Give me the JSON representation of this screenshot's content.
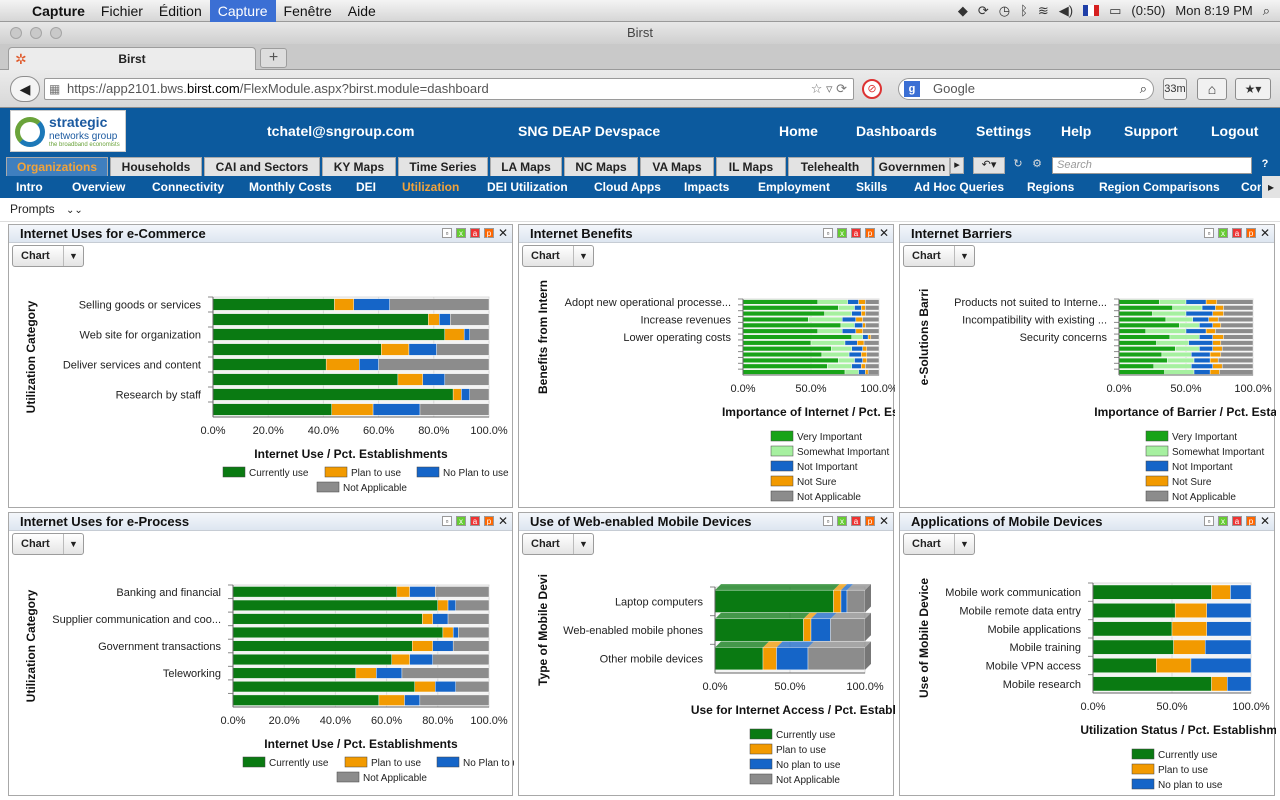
{
  "mac_menu": {
    "apple": "",
    "app": "Capture",
    "items": [
      "Fichier",
      "Édition",
      "Capture",
      "Fenêtre",
      "Aide"
    ],
    "battery": "(0:50)",
    "clock": "Mon 8:19 PM"
  },
  "window_title": "Birst",
  "browser": {
    "tab_title": "Birst",
    "new_tab": "+",
    "url_prefix": "https://app2101.bws.",
    "url_host": "birst.com",
    "url_path": "/FlexModule.aspx?birst.module=dashboard",
    "search_placeholder": "Google",
    "badge": "33m"
  },
  "app": {
    "logo_line1": "strategic",
    "logo_line2": "networks group",
    "logo_line3": "the broadband economists",
    "user": "tchatel@sngroup.com",
    "space": "SNG DEAP Devspace",
    "nav": [
      "Home",
      "Dashboards",
      "Settings",
      "Help",
      "Support",
      "Logout"
    ]
  },
  "main_tabs": [
    "Organizations",
    "Households",
    "CAI and Sectors",
    "KY Maps",
    "Time Series",
    "LA Maps",
    "NC Maps",
    "VA Maps",
    "IL Maps",
    "Telehealth",
    "Governmen"
  ],
  "search_placeholder": "Search",
  "sub_tabs": [
    "Intro",
    "Overview",
    "Connectivity",
    "Monthly Costs",
    "DEI",
    "Utilization",
    "DEI Utilization",
    "Cloud Apps",
    "Impacts",
    "Employment",
    "Skills",
    "Ad Hoc Queries",
    "Regions",
    "Region Comparisons",
    "Con"
  ],
  "prompts_label": "Prompts",
  "chart_button": "Chart",
  "colors": {
    "header": "#0c5a9e",
    "accent": "#f2a33a",
    "current": "#0a7a12",
    "very_important": "#18a318",
    "somewhat": "#a6f0a0",
    "plan": "#f29a00",
    "noplan": "#1565c8",
    "notsure": "#f29a00",
    "na": "#8c8c8c"
  },
  "panels": [
    {
      "title": "Internet Uses for e-Commerce",
      "chart_data": {
        "type": "bar",
        "orientation": "horizontal",
        "stacked": true,
        "title": "Internet Uses for e-Commerce",
        "ylabel": "Utilization Category",
        "xlabel": "Internet Use / Pct. Establishments",
        "categories": [
          "Selling goods or services",
          "",
          "Web site for organization",
          "",
          "Deliver services and content",
          "",
          "Research by staff",
          ""
        ],
        "xticks": [
          "0.0%",
          "20.0%",
          "40.0%",
          "60.0%",
          "80.0%",
          "100.0%"
        ],
        "xlim": [
          0,
          100
        ],
        "series": [
          {
            "name": "Currently use",
            "values": [
              44,
              78,
              84,
              61,
              41,
              67,
              87,
              43
            ]
          },
          {
            "name": "Plan to use",
            "values": [
              7,
              4,
              7,
              10,
              12,
              9,
              3,
              15
            ]
          },
          {
            "name": "No Plan to use",
            "values": [
              13,
              4,
              2,
              10,
              7,
              8,
              3,
              17
            ]
          },
          {
            "name": "Not Applicable",
            "values": [
              36,
              14,
              7,
              19,
              40,
              16,
              7,
              25
            ]
          }
        ],
        "legend": "bottom"
      }
    },
    {
      "title": "Internet Benefits",
      "chart_data": {
        "type": "bar",
        "orientation": "horizontal",
        "stacked": true,
        "title": "Internet Benefits",
        "ylabel": "Benefits from Intern",
        "xlabel": "Importance of Internet / Pct. Establ",
        "categories": [
          "Adopt new operational processe...",
          "",
          "",
          "Increase revenues",
          "",
          "",
          "Lower operating costs",
          "",
          "",
          "",
          "",
          "",
          ""
        ],
        "xticks": [
          "0.0%",
          "50.0%",
          "100.0%"
        ],
        "xlim": [
          0,
          100
        ],
        "series": [
          {
            "name": "Very Important",
            "values": [
              55,
              70,
              60,
              48,
              72,
              55,
              80,
              50,
              65,
              58,
              70,
              62,
              75
            ]
          },
          {
            "name": "Somewhat Important",
            "values": [
              22,
              12,
              20,
              25,
              10,
              18,
              8,
              25,
              15,
              20,
              12,
              18,
              10
            ]
          },
          {
            "name": "Not Important",
            "values": [
              8,
              5,
              7,
              10,
              6,
              10,
              4,
              9,
              8,
              9,
              6,
              7,
              5
            ]
          },
          {
            "name": "Not Sure",
            "values": [
              5,
              3,
              3,
              5,
              2,
              5,
              2,
              5,
              3,
              4,
              3,
              3,
              2
            ]
          },
          {
            "name": "Not Applicable",
            "values": [
              10,
              10,
              10,
              12,
              10,
              12,
              6,
              11,
              9,
              9,
              9,
              10,
              8
            ]
          }
        ],
        "legend": "bottom"
      }
    },
    {
      "title": "Internet Barriers",
      "chart_data": {
        "type": "bar",
        "orientation": "horizontal",
        "stacked": true,
        "title": "Internet Barriers",
        "ylabel": "e-Solutions Barri",
        "xlabel": "Importance of Barrier / Pct. Establis",
        "categories": [
          "Products not suited to Interne...",
          "",
          "",
          "Incompatibility with existing ...",
          "",
          "",
          "Security concerns",
          "",
          "",
          "",
          "",
          "",
          ""
        ],
        "xticks": [
          "0.0%",
          "50.0%",
          "100.0%"
        ],
        "xlim": [
          0,
          100
        ],
        "series": [
          {
            "name": "Very Important",
            "values": [
              30,
              40,
              25,
              35,
              45,
              20,
              38,
              28,
              42,
              32,
              36,
              26,
              34
            ]
          },
          {
            "name": "Somewhat Important",
            "values": [
              20,
              22,
              25,
              20,
              15,
              30,
              22,
              24,
              18,
              22,
              20,
              28,
              22
            ]
          },
          {
            "name": "Not Important",
            "values": [
              15,
              10,
              20,
              12,
              10,
              15,
              10,
              18,
              10,
              14,
              12,
              16,
              12
            ]
          },
          {
            "name": "Not Sure",
            "values": [
              8,
              6,
              8,
              7,
              6,
              7,
              8,
              6,
              7,
              8,
              6,
              7,
              7
            ]
          },
          {
            "name": "Not Applicable",
            "values": [
              27,
              22,
              22,
              26,
              24,
              28,
              22,
              24,
              23,
              24,
              26,
              23,
              25
            ]
          }
        ],
        "legend": "bottom"
      }
    },
    {
      "title": "Internet Uses for e-Process",
      "chart_data": {
        "type": "bar",
        "orientation": "horizontal",
        "stacked": true,
        "title": "Internet Uses for e-Process",
        "ylabel": "Utilization Category",
        "xlabel": "Internet Use / Pct. Establishments",
        "categories": [
          "Banking and financial",
          "",
          "Supplier communication and coo...",
          "",
          "Government transactions",
          "",
          "Teleworking",
          "",
          ""
        ],
        "xticks": [
          "0.0%",
          "20.0%",
          "40.0%",
          "60.0%",
          "80.0%",
          "100.0%"
        ],
        "xlim": [
          0,
          100
        ],
        "series": [
          {
            "name": "Currently use",
            "values": [
              64,
              80,
              74,
              82,
              70,
              62,
              48,
              71,
              57
            ]
          },
          {
            "name": "Plan to use",
            "values": [
              5,
              4,
              4,
              4,
              8,
              7,
              8,
              8,
              10
            ]
          },
          {
            "name": "No Plan to use",
            "values": [
              10,
              3,
              6,
              2,
              8,
              9,
              10,
              8,
              6
            ]
          },
          {
            "name": "Not Applicable",
            "values": [
              21,
              13,
              16,
              12,
              14,
              22,
              34,
              13,
              27
            ]
          }
        ],
        "legend": "bottom"
      }
    },
    {
      "title": "Use of Web-enabled Mobile Devices",
      "chart_data": {
        "type": "bar",
        "orientation": "horizontal",
        "stacked": true,
        "title": "Use of Web-enabled Mobile Devices",
        "ylabel": "Type of Mobile Devi",
        "xlabel": "Use for Internet Access / Pct. Establisl",
        "categories": [
          "Laptop computers",
          "Web-enabled mobile phones",
          "Other mobile devices"
        ],
        "xticks": [
          "0.0%",
          "50.0%",
          "100.0%"
        ],
        "xlim": [
          0,
          100
        ],
        "series": [
          {
            "name": "Currently use",
            "values": [
              79,
              59,
              32
            ]
          },
          {
            "name": "Plan to use",
            "values": [
              5,
              5,
              9
            ]
          },
          {
            "name": "No plan to use",
            "values": [
              4,
              13,
              21
            ]
          },
          {
            "name": "Not Applicable",
            "values": [
              12,
              23,
              38
            ]
          }
        ],
        "legend": "bottom"
      }
    },
    {
      "title": "Applications of Mobile Devices",
      "chart_data": {
        "type": "bar",
        "orientation": "horizontal",
        "stacked": true,
        "title": "Applications of Mobile Devices",
        "ylabel": "Use of Mobile Device",
        "xlabel": "Utilization Status / Pct. Establishme",
        "categories": [
          "Mobile work communication",
          "Mobile remote data entry",
          "Mobile applications",
          "Mobile training",
          "Mobile VPN access",
          "Mobile research"
        ],
        "xticks": [
          "0.0%",
          "50.0%",
          "100.0%"
        ],
        "xlim": [
          0,
          100
        ],
        "series": [
          {
            "name": "Currently use",
            "values": [
              75,
              52,
              50,
              51,
              40,
              75
            ]
          },
          {
            "name": "Plan to use",
            "values": [
              12,
              20,
              22,
              20,
              22,
              10
            ]
          },
          {
            "name": "No plan to use",
            "values": [
              13,
              28,
              28,
              29,
              38,
              15
            ]
          }
        ],
        "legend": "bottom"
      }
    }
  ]
}
